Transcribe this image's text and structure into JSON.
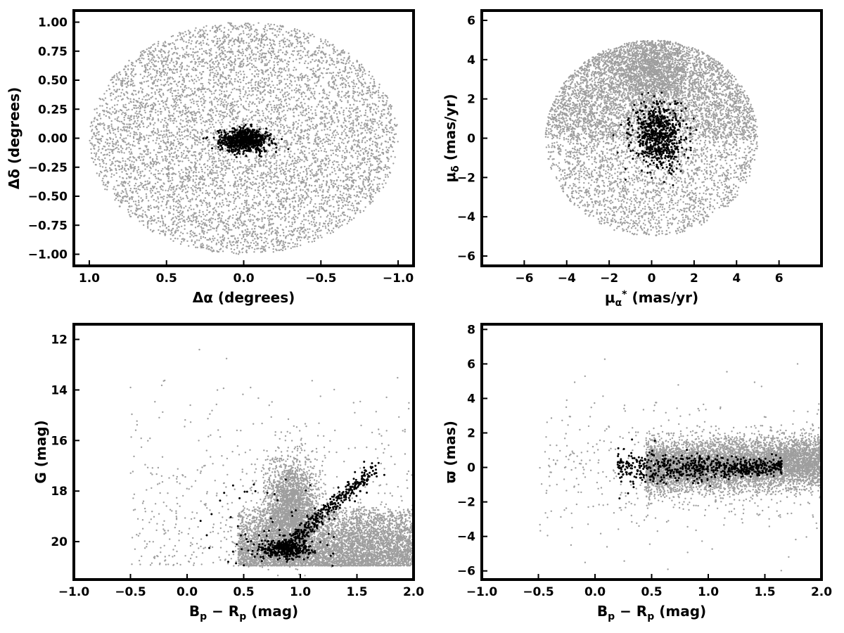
{
  "chart_data": [
    {
      "type": "scatter",
      "xlabel": "Δα (degrees)",
      "ylabel": "Δδ (degrees)",
      "xlim": [
        1.1,
        -1.1
      ],
      "ylim": [
        -1.1,
        1.1
      ],
      "x_reversed": true,
      "xticks": [
        1.0,
        0.5,
        0.0,
        -0.5,
        -1.0
      ],
      "xtick_labels": [
        "1.0",
        "0.5",
        "0.0",
        "−0.5",
        "−1.0"
      ],
      "yticks": [
        -1.0,
        -0.75,
        -0.5,
        -0.25,
        0.0,
        0.25,
        0.5,
        0.75,
        1.0
      ],
      "ytick_labels": [
        "−1.00",
        "−0.75",
        "−0.50",
        "−0.25",
        "0.00",
        "0.25",
        "0.50",
        "0.75",
        "1.00"
      ],
      "grid": false,
      "series": [
        {
          "color": "#9e9e9e",
          "distribution": "uniform disk",
          "center": [
            0.0,
            0.0
          ],
          "radius_x": 1.0,
          "radius_y": 1.0
        },
        {
          "color": "#000000",
          "distribution": "central cluster",
          "center": [
            0.0,
            -0.02
          ],
          "spread_x": 0.08,
          "spread_y": 0.05
        }
      ]
    },
    {
      "type": "scatter",
      "xlabel": "μα* (mas/yr)",
      "ylabel": "μδ (mas/yr)",
      "xlim": [
        -8,
        8
      ],
      "ylim": [
        -6.5,
        6.5
      ],
      "xticks": [
        -6,
        -4,
        -2,
        0,
        2,
        4,
        6
      ],
      "xtick_labels": [
        "−6",
        "−4",
        "−2",
        "0",
        "2",
        "4",
        "6"
      ],
      "yticks": [
        -6,
        -4,
        -2,
        0,
        2,
        4,
        6
      ],
      "ytick_labels": [
        "−6",
        "−4",
        "−2",
        "0",
        "2",
        "4",
        "6"
      ],
      "grid": false,
      "series": [
        {
          "color": "#9e9e9e",
          "distribution": "disk radius 5 centered at origin, concentrated toward top",
          "center": [
            0.0,
            0.0
          ],
          "radius": 5.0
        },
        {
          "color": "#000000",
          "distribution": "central cluster",
          "center": [
            0.3,
            0.1
          ],
          "spread_x": 0.6,
          "spread_y": 0.8
        }
      ]
    },
    {
      "type": "scatter",
      "xlabel": "Bp − Rp (mag)",
      "ylabel": "G (mag)",
      "xlim": [
        -1.0,
        2.0
      ],
      "ylim": [
        21.5,
        11.4
      ],
      "y_reversed": true,
      "xticks": [
        -1.0,
        -0.5,
        0.0,
        0.5,
        1.0,
        1.5,
        2.0
      ],
      "xtick_labels": [
        "−1.0",
        "−0.5",
        "0.0",
        "0.5",
        "1.0",
        "1.5",
        "2.0"
      ],
      "yticks": [
        12,
        14,
        16,
        18,
        20
      ],
      "ytick_labels": [
        "12",
        "14",
        "16",
        "18",
        "20"
      ],
      "grid": false,
      "series": [
        {
          "color": "#9e9e9e",
          "distribution": "field stars, dense for G 18–21, clump near (0.9, 18)"
        },
        {
          "color": "#000000",
          "distribution": "cluster sequence",
          "clump": [
            0.85,
            20.3
          ],
          "sequence_start": [
            0.85,
            20.3
          ],
          "sequence_end": [
            1.65,
            17.1
          ]
        }
      ]
    },
    {
      "type": "scatter",
      "xlabel": "Bp − Rp (mag)",
      "ylabel": "ϖ (mas)",
      "xlim": [
        -1.0,
        2.0
      ],
      "ylim": [
        -6.5,
        8.3
      ],
      "xticks": [
        -1.0,
        -0.5,
        0.0,
        0.5,
        1.0,
        1.5,
        2.0
      ],
      "xtick_labels": [
        "−1.0",
        "−0.5",
        "0.0",
        "0.5",
        "1.0",
        "1.5",
        "2.0"
      ],
      "yticks": [
        -6,
        -4,
        -2,
        0,
        2,
        4,
        6,
        8
      ],
      "ytick_labels": [
        "−6",
        "−4",
        "−2",
        "0",
        "2",
        "4",
        "6",
        "8"
      ],
      "grid": false,
      "series": [
        {
          "color": "#9e9e9e",
          "distribution": "band centered near 0 mas, rising slightly with color"
        },
        {
          "color": "#000000",
          "distribution": "tight band near 0 mas",
          "x_range": [
            0.2,
            1.65
          ],
          "center_y": 0.0
        }
      ]
    }
  ]
}
